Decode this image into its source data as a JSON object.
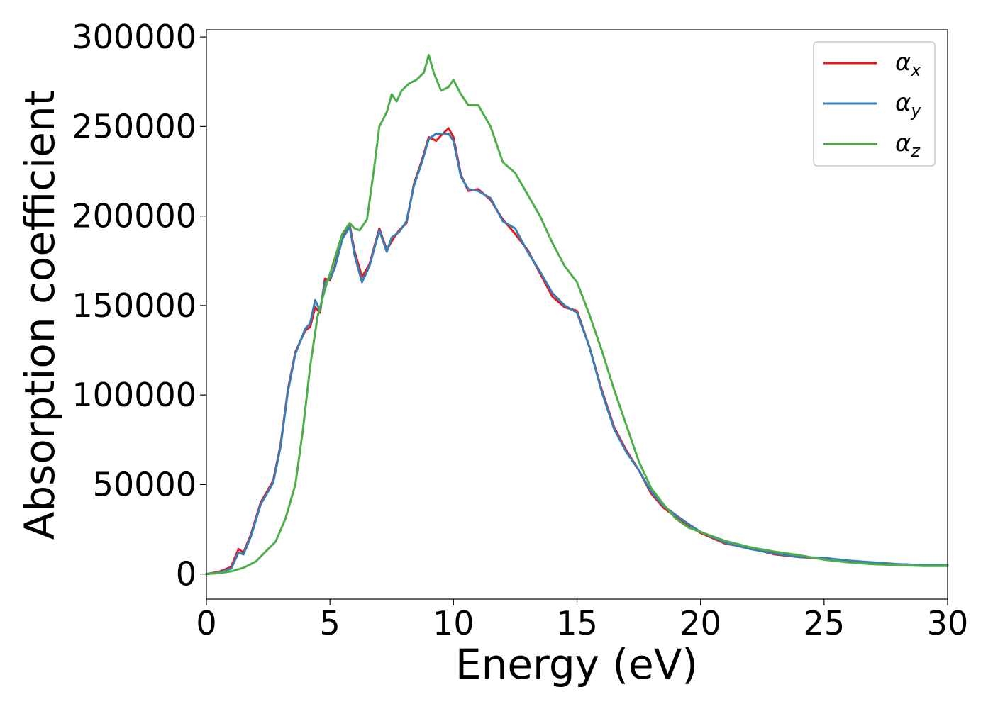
{
  "chart_data": {
    "type": "line",
    "xlabel": "Energy (eV)",
    "ylabel": "Absorption coefficient",
    "xlim": [
      0,
      30
    ],
    "ylim": [
      -14000,
      304000
    ],
    "xticks": [
      "0",
      "5",
      "10",
      "15",
      "20",
      "25",
      "30"
    ],
    "yticks": [
      "0",
      "50000",
      "100000",
      "150000",
      "200000",
      "250000",
      "300000"
    ],
    "grid": false,
    "legend_position": "top-right",
    "series": [
      {
        "name": "αx",
        "legend_symbol": "α",
        "legend_subscript": "x",
        "color": "#e41a1c",
        "x": [
          0,
          0.5,
          1,
          1.3,
          1.5,
          1.8,
          2.2,
          2.7,
          3,
          3.3,
          3.6,
          4,
          4.2,
          4.4,
          4.6,
          4.8,
          5,
          5.2,
          5.5,
          5.8,
          6,
          6.3,
          6.6,
          7,
          7.3,
          7.5,
          7.8,
          8.1,
          8.4,
          8.7,
          9,
          9.3,
          9.5,
          9.8,
          10,
          10.3,
          10.6,
          11,
          11.5,
          12,
          12.5,
          13,
          13.5,
          14,
          14.5,
          15,
          15.5,
          16,
          16.5,
          17,
          17.5,
          18,
          18.5,
          19,
          19.5,
          20,
          21,
          22,
          23,
          24,
          25,
          26,
          27,
          28,
          29,
          30
        ],
        "values": [
          0,
          1200,
          4000,
          14000,
          12000,
          22000,
          40000,
          52000,
          72000,
          103000,
          124000,
          136000,
          138000,
          149000,
          146000,
          165000,
          164000,
          172000,
          188000,
          195000,
          180000,
          166000,
          173000,
          193000,
          181000,
          186000,
          192000,
          196000,
          218000,
          230000,
          244000,
          242000,
          245000,
          249000,
          244000,
          223000,
          214000,
          215000,
          209000,
          198000,
          190000,
          181000,
          168000,
          155000,
          149000,
          147000,
          127000,
          103000,
          82000,
          69000,
          58000,
          45000,
          37000,
          32000,
          27000,
          23000,
          17000,
          14500,
          11000,
          9500,
          8500,
          7000,
          6000,
          5500,
          5000,
          5000
        ]
      },
      {
        "name": "αy",
        "legend_symbol": "α",
        "legend_subscript": "y",
        "color": "#377eb8",
        "x": [
          0,
          0.5,
          1,
          1.3,
          1.5,
          1.8,
          2.2,
          2.7,
          3,
          3.3,
          3.6,
          4,
          4.2,
          4.4,
          4.6,
          4.8,
          5,
          5.2,
          5.5,
          5.8,
          6,
          6.3,
          6.6,
          7,
          7.3,
          7.5,
          7.8,
          8.1,
          8.4,
          8.7,
          9,
          9.3,
          9.5,
          9.8,
          10,
          10.3,
          10.6,
          11,
          11.5,
          12,
          12.5,
          13,
          13.5,
          14,
          14.5,
          15,
          15.5,
          16,
          16.5,
          17,
          17.5,
          18,
          18.5,
          19,
          19.5,
          20,
          21,
          22,
          23,
          24,
          25,
          26,
          27,
          28,
          29,
          30
        ],
        "values": [
          0,
          800,
          3000,
          12000,
          11000,
          21000,
          39000,
          51000,
          71000,
          102000,
          123000,
          137000,
          140000,
          153000,
          147000,
          163000,
          165000,
          171000,
          187000,
          194000,
          178000,
          163000,
          172000,
          192000,
          180000,
          188000,
          191000,
          197000,
          217000,
          229000,
          243000,
          246000,
          246000,
          246000,
          242000,
          222000,
          215000,
          214000,
          210000,
          197000,
          193000,
          180000,
          169000,
          157000,
          150000,
          146000,
          127000,
          102000,
          81000,
          68000,
          58000,
          46000,
          38000,
          33000,
          28000,
          23500,
          17500,
          14000,
          11500,
          9500,
          9000,
          7500,
          6500,
          5500,
          5000,
          5000
        ]
      },
      {
        "name": "αz",
        "legend_symbol": "α",
        "legend_subscript": "z",
        "color": "#4daf4a",
        "x": [
          0,
          0.5,
          1,
          1.5,
          2,
          2.5,
          2.8,
          3.2,
          3.6,
          3.9,
          4.2,
          4.5,
          4.8,
          5.1,
          5.5,
          5.8,
          6,
          6.2,
          6.5,
          6.8,
          7,
          7.3,
          7.5,
          7.7,
          7.9,
          8.2,
          8.5,
          8.8,
          9,
          9.2,
          9.5,
          9.8,
          10,
          10.3,
          10.6,
          11,
          11.5,
          12,
          12.5,
          13,
          13.5,
          14,
          14.5,
          15,
          15.5,
          16,
          16.5,
          17,
          17.5,
          18,
          18.5,
          19,
          19.5,
          20,
          21,
          22,
          23,
          24,
          25,
          26,
          27,
          28,
          29,
          30
        ],
        "values": [
          0,
          500,
          1500,
          3500,
          7000,
          14000,
          18000,
          31000,
          50000,
          80000,
          116000,
          144000,
          159000,
          172000,
          190000,
          196000,
          193000,
          192000,
          198000,
          228000,
          250000,
          258000,
          268000,
          264000,
          270000,
          274000,
          276000,
          280000,
          290000,
          280000,
          270000,
          272000,
          276000,
          268000,
          262000,
          262000,
          250000,
          230000,
          224000,
          212000,
          200000,
          185000,
          172000,
          163000,
          145000,
          125000,
          103000,
          83000,
          63000,
          48000,
          39000,
          31000,
          26000,
          23500,
          18500,
          15000,
          12500,
          10500,
          8000,
          6500,
          5500,
          5000,
          4500,
          4500
        ]
      }
    ]
  }
}
